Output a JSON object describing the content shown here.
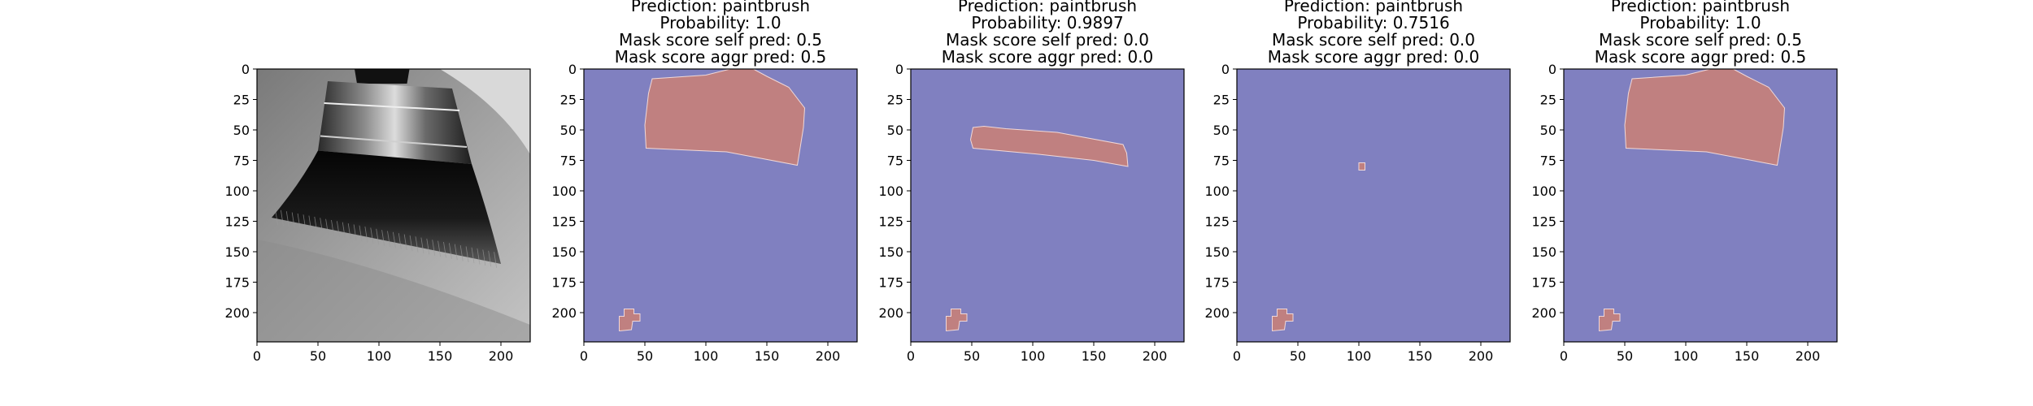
{
  "colors": {
    "background_mask": "#8080c0",
    "foreground_mask": "#c08080",
    "axes_frame": "#000000"
  },
  "chart_data": [
    {
      "type": "image",
      "content": "grayscale photograph of a paintbrush",
      "title_lines": [],
      "xticks": [
        0,
        50,
        100,
        150,
        200
      ],
      "yticks": [
        0,
        25,
        50,
        75,
        100,
        125,
        150,
        175,
        200
      ],
      "xlim": [
        0,
        224
      ],
      "ylim": [
        224,
        0
      ]
    },
    {
      "type": "mask",
      "title_lines": [
        "Prediction: paintbrush",
        "Probability: 1.0",
        "Mask score self pred: 0.5",
        "Mask score aggr pred: 0.5"
      ],
      "prediction": "paintbrush",
      "probability": 1.0,
      "mask_score_self_pred": 0.5,
      "mask_score_aggr_pred": 0.5,
      "xticks": [
        0,
        50,
        100,
        150,
        200
      ],
      "yticks": [
        0,
        25,
        50,
        75,
        100,
        125,
        150,
        175,
        200
      ],
      "xlim": [
        0,
        224
      ],
      "ylim": [
        224,
        0
      ],
      "regions": [
        {
          "points": [
            [
              56,
              8
            ],
            [
              100,
              5
            ],
            [
              120,
              0
            ],
            [
              139,
              0
            ],
            [
              150,
              6
            ],
            [
              168,
              15
            ],
            [
              181,
              32
            ],
            [
              180,
              48
            ],
            [
              175,
              79
            ],
            [
              117,
              68
            ],
            [
              51,
              65
            ],
            [
              50,
              46
            ],
            [
              53,
              20
            ]
          ]
        },
        {
          "points": [
            [
              29,
              203
            ],
            [
              33,
              203
            ],
            [
              33,
              197
            ],
            [
              41,
              197
            ],
            [
              41,
              201
            ],
            [
              46,
              201
            ],
            [
              46,
              207
            ],
            [
              40,
              207
            ],
            [
              39,
              214
            ],
            [
              29,
              215
            ]
          ]
        }
      ]
    },
    {
      "type": "mask",
      "title_lines": [
        "Prediction: paintbrush",
        "Probability: 0.9897",
        "Mask score self pred: 0.0",
        "Mask score aggr pred: 0.0"
      ],
      "prediction": "paintbrush",
      "probability": 0.9897,
      "mask_score_self_pred": 0.0,
      "mask_score_aggr_pred": 0.0,
      "xticks": [
        0,
        50,
        100,
        150,
        200
      ],
      "yticks": [
        0,
        25,
        50,
        75,
        100,
        125,
        150,
        175,
        200
      ],
      "xlim": [
        0,
        224
      ],
      "ylim": [
        224,
        0
      ],
      "regions": [
        {
          "points": [
            [
              51,
              48
            ],
            [
              60,
              47
            ],
            [
              78,
              49
            ],
            [
              120,
              52
            ],
            [
              174,
              62
            ],
            [
              177,
              69
            ],
            [
              178,
              80
            ],
            [
              150,
              75
            ],
            [
              105,
              70
            ],
            [
              51,
              65
            ],
            [
              49,
              58
            ]
          ]
        },
        {
          "points": [
            [
              29,
              203
            ],
            [
              33,
              203
            ],
            [
              33,
              197
            ],
            [
              41,
              197
            ],
            [
              41,
              201
            ],
            [
              46,
              201
            ],
            [
              46,
              207
            ],
            [
              40,
              207
            ],
            [
              39,
              214
            ],
            [
              29,
              215
            ]
          ]
        }
      ]
    },
    {
      "type": "mask",
      "title_lines": [
        "Prediction: paintbrush",
        "Probability: 0.7516",
        "Mask score self pred: 0.0",
        "Mask score aggr pred: 0.0"
      ],
      "prediction": "paintbrush",
      "probability": 0.7516,
      "mask_score_self_pred": 0.0,
      "mask_score_aggr_pred": 0.0,
      "xticks": [
        0,
        50,
        100,
        150,
        200
      ],
      "yticks": [
        0,
        25,
        50,
        75,
        100,
        125,
        150,
        175,
        200
      ],
      "xlim": [
        0,
        224
      ],
      "ylim": [
        224,
        0
      ],
      "regions": [
        {
          "points": [
            [
              100,
              77
            ],
            [
              105,
              77
            ],
            [
              105,
              83
            ],
            [
              100,
              83
            ]
          ]
        },
        {
          "points": [
            [
              29,
              203
            ],
            [
              33,
              203
            ],
            [
              33,
              197
            ],
            [
              41,
              197
            ],
            [
              41,
              201
            ],
            [
              46,
              201
            ],
            [
              46,
              207
            ],
            [
              40,
              207
            ],
            [
              39,
              214
            ],
            [
              29,
              215
            ]
          ]
        }
      ]
    },
    {
      "type": "mask",
      "title_lines": [
        "Prediction: paintbrush",
        "Probability: 1.0",
        "Mask score self pred: 0.5",
        "Mask score aggr pred: 0.5"
      ],
      "prediction": "paintbrush",
      "probability": 1.0,
      "mask_score_self_pred": 0.5,
      "mask_score_aggr_pred": 0.5,
      "xticks": [
        0,
        50,
        100,
        150,
        200
      ],
      "yticks": [
        0,
        25,
        50,
        75,
        100,
        125,
        150,
        175,
        200
      ],
      "xlim": [
        0,
        224
      ],
      "ylim": [
        224,
        0
      ],
      "regions": [
        {
          "points": [
            [
              56,
              8
            ],
            [
              100,
              5
            ],
            [
              120,
              0
            ],
            [
              139,
              0
            ],
            [
              150,
              6
            ],
            [
              168,
              15
            ],
            [
              181,
              32
            ],
            [
              180,
              48
            ],
            [
              175,
              79
            ],
            [
              117,
              68
            ],
            [
              51,
              65
            ],
            [
              50,
              46
            ],
            [
              53,
              20
            ]
          ]
        },
        {
          "points": [
            [
              29,
              203
            ],
            [
              33,
              203
            ],
            [
              33,
              197
            ],
            [
              41,
              197
            ],
            [
              41,
              201
            ],
            [
              46,
              201
            ],
            [
              46,
              207
            ],
            [
              40,
              207
            ],
            [
              39,
              214
            ],
            [
              29,
              215
            ]
          ]
        }
      ]
    }
  ]
}
